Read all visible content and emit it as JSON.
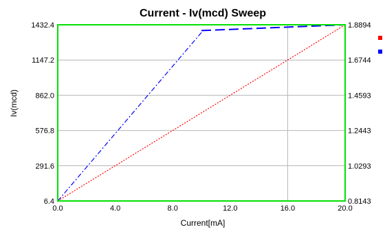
{
  "chart_data": {
    "type": "line",
    "title": "Current - Iv(mcd) Sweep",
    "xlabel": "Current[mA]",
    "ylabel": "Iv(mcd)",
    "xlim": [
      0,
      20
    ],
    "ylim": [
      6.4,
      1432.4
    ],
    "y2lim": [
      0.8143,
      1.8894
    ],
    "x_ticks": [
      0,
      4,
      8,
      12,
      16,
      20
    ],
    "x_tick_labels": [
      "0.0",
      "4.0",
      "8.0",
      "12.0",
      "16.0",
      "20.0"
    ],
    "y_tick_labels": [
      "6.4",
      "291.6",
      "576.8",
      "862.0",
      "1147.2",
      "1432.4"
    ],
    "y2_tick_labels": [
      "0.8143",
      "1.0293",
      "1.2443",
      "1.4593",
      "1.6744",
      "1.8894"
    ],
    "grid": true,
    "series": [
      {
        "axis": "left",
        "color": "#ff0000",
        "style": "dotted",
        "x": [
          0,
          20
        ],
        "y": [
          6.4,
          1432.4
        ]
      },
      {
        "axis": "left",
        "color": "#0000ff",
        "style": "dash-dot",
        "x": [
          0,
          10
        ],
        "y": [
          6.4,
          1370
        ]
      },
      {
        "axis": "right",
        "color": "#0000ff",
        "style": "dashed",
        "x": [
          10,
          20
        ],
        "y": [
          1.854,
          1.8894
        ]
      }
    ],
    "legend_markers": [
      {
        "color": "#ff0000"
      },
      {
        "color": "#0000ff"
      }
    ]
  }
}
